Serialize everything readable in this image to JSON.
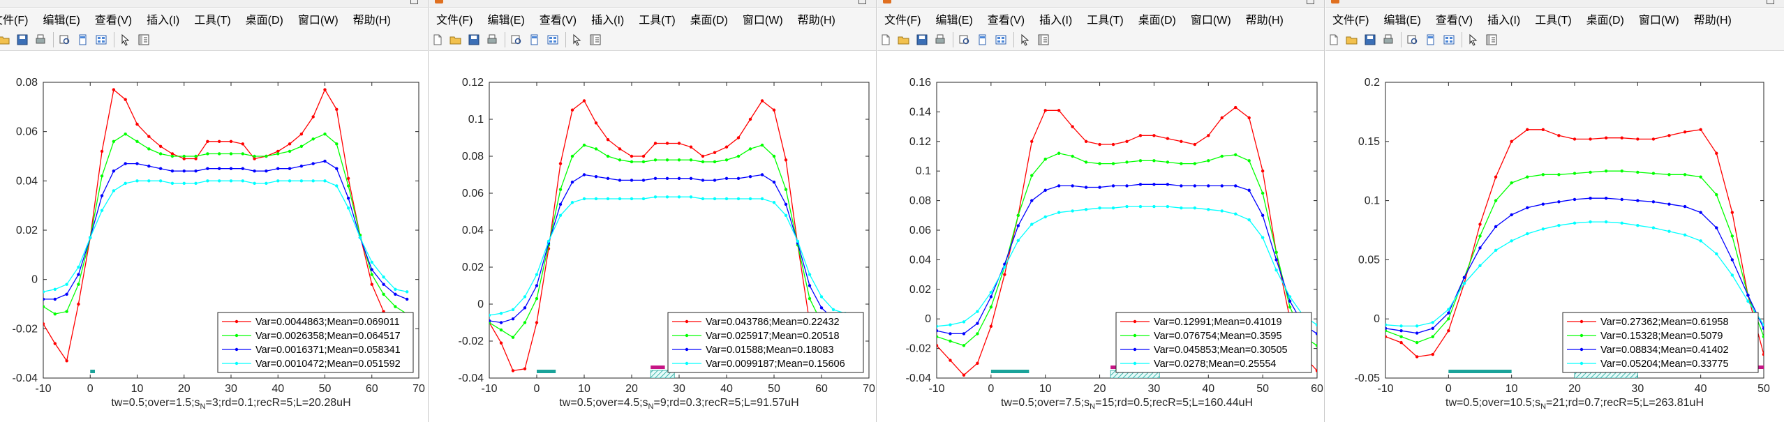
{
  "menu": [
    "文件(F)",
    "编辑(E)",
    "查看(V)",
    "插入(I)",
    "工具(T)",
    "桌面(D)",
    "窗口(W)",
    "帮助(H)"
  ],
  "toolbar_icons": [
    "new-file-icon",
    "open-folder-icon",
    "save-icon",
    "print-icon",
    "print-preview-icon",
    "dock-figure-icon",
    "property-editor-icon",
    "pointer-icon",
    "plot-browser-icon"
  ],
  "colors": {
    "series": [
      "#ff0000",
      "#00ff00",
      "#0000ff",
      "#00ffff"
    ],
    "marker_teal": "#1aa39a",
    "marker_magenta": "#c71585",
    "axis": "#262626",
    "grid": "#e3e3e3"
  },
  "chart_data": [
    {
      "type": "line",
      "x": [
        -10,
        -7.5,
        -5,
        -2.5,
        0,
        2.5,
        5,
        7.5,
        10,
        12.5,
        15,
        17.5,
        20,
        22.5,
        25,
        27.5,
        30,
        32.5,
        35,
        37.5,
        40,
        42.5,
        45,
        47.5,
        50,
        52.5,
        55,
        57.5,
        60,
        62.5,
        65,
        67.5
      ],
      "series": [
        {
          "name": "Var=0.0044863;Mean=0.069011",
          "values": [
            -0.018,
            -0.026,
            -0.033,
            -0.01,
            0.017,
            0.052,
            0.077,
            0.073,
            0.063,
            0.058,
            0.054,
            0.051,
            0.049,
            0.049,
            0.056,
            0.056,
            0.056,
            0.055,
            0.049,
            0.05,
            0.052,
            0.055,
            0.059,
            0.066,
            0.077,
            0.069,
            0.041,
            0.018,
            -0.002,
            -0.013,
            -0.024,
            -0.028
          ]
        },
        {
          "name": "Var=0.0026358;Mean=0.064517",
          "values": [
            -0.011,
            -0.014,
            -0.013,
            -0.002,
            0.017,
            0.042,
            0.056,
            0.059,
            0.056,
            0.053,
            0.051,
            0.05,
            0.05,
            0.05,
            0.051,
            0.051,
            0.051,
            0.051,
            0.05,
            0.05,
            0.051,
            0.052,
            0.054,
            0.057,
            0.059,
            0.055,
            0.038,
            0.018,
            0.002,
            -0.006,
            -0.011,
            -0.014
          ]
        },
        {
          "name": "Var=0.0016371;Mean=0.058341",
          "values": [
            -0.008,
            -0.008,
            -0.006,
            0.002,
            0.017,
            0.034,
            0.044,
            0.047,
            0.047,
            0.046,
            0.045,
            0.044,
            0.044,
            0.044,
            0.045,
            0.045,
            0.045,
            0.045,
            0.044,
            0.044,
            0.045,
            0.045,
            0.046,
            0.047,
            0.048,
            0.045,
            0.033,
            0.017,
            0.004,
            -0.002,
            -0.006,
            -0.008
          ]
        },
        {
          "name": "Var=0.0010472;Mean=0.051592",
          "values": [
            -0.005,
            -0.004,
            -0.002,
            0.005,
            0.017,
            0.028,
            0.036,
            0.039,
            0.04,
            0.04,
            0.04,
            0.039,
            0.039,
            0.039,
            0.04,
            0.04,
            0.04,
            0.04,
            0.039,
            0.039,
            0.04,
            0.04,
            0.04,
            0.04,
            0.04,
            0.038,
            0.029,
            0.017,
            0.007,
            0.001,
            -0.004,
            -0.005
          ]
        }
      ],
      "xlim": [
        -10,
        70
      ],
      "ylim": [
        -0.04,
        0.08
      ],
      "xticks": [
        -10,
        0,
        10,
        20,
        30,
        40,
        50,
        60,
        70
      ],
      "yticks": [
        -0.04,
        -0.02,
        0,
        0.02,
        0.04,
        0.06,
        0.08
      ],
      "ytick_labels": [
        "-0.04",
        "-0.02",
        "0",
        "0.02",
        "0.04",
        "0.06",
        "0.08"
      ],
      "xlabel_parts": [
        "tw=0.5;over=1.5;s",
        "N",
        "=3;rd=0.1;recR=5;L=20.28uH"
      ],
      "bottom_markers": [
        {
          "x0": 0,
          "x1": 1,
          "color": "teal"
        }
      ],
      "grid": false,
      "legend": "bottom-right"
    },
    {
      "type": "line",
      "x": [
        -10,
        -7.5,
        -5,
        -2.5,
        0,
        2.5,
        5,
        7.5,
        10,
        12.5,
        15,
        17.5,
        20,
        22.5,
        25,
        27.5,
        30,
        32.5,
        35,
        37.5,
        40,
        42.5,
        45,
        47.5,
        50,
        52.5,
        55,
        57.5,
        60,
        62.5,
        65,
        67.5
      ],
      "series": [
        {
          "name": "Var=0.043786;Mean=0.22432",
          "values": [
            -0.01,
            -0.021,
            -0.036,
            -0.035,
            -0.01,
            0.03,
            0.076,
            0.105,
            0.11,
            0.098,
            0.089,
            0.084,
            0.08,
            0.08,
            0.087,
            0.087,
            0.087,
            0.085,
            0.08,
            0.082,
            0.085,
            0.09,
            0.1,
            0.11,
            0.105,
            0.078,
            0.032,
            -0.01,
            -0.035,
            -0.036,
            -0.025,
            -0.018
          ]
        },
        {
          "name": "Var=0.025917;Mean=0.20518",
          "values": [
            -0.01,
            -0.014,
            -0.018,
            -0.01,
            0.003,
            0.032,
            0.062,
            0.08,
            0.086,
            0.084,
            0.08,
            0.078,
            0.077,
            0.077,
            0.078,
            0.078,
            0.078,
            0.078,
            0.077,
            0.077,
            0.078,
            0.08,
            0.084,
            0.086,
            0.08,
            0.062,
            0.032,
            0.003,
            -0.01,
            -0.018,
            -0.014,
            -0.01
          ]
        },
        {
          "name": "Var=0.01588;Mean=0.18083",
          "values": [
            -0.009,
            -0.01,
            -0.008,
            -0.002,
            0.01,
            0.033,
            0.054,
            0.066,
            0.07,
            0.069,
            0.068,
            0.067,
            0.067,
            0.067,
            0.068,
            0.068,
            0.068,
            0.068,
            0.067,
            0.067,
            0.068,
            0.068,
            0.069,
            0.07,
            0.066,
            0.054,
            0.033,
            0.01,
            -0.002,
            -0.008,
            -0.01,
            -0.009
          ]
        },
        {
          "name": "Var=0.0099187;Mean=0.15606",
          "values": [
            -0.006,
            -0.005,
            -0.003,
            0.004,
            0.016,
            0.034,
            0.048,
            0.055,
            0.057,
            0.057,
            0.057,
            0.057,
            0.057,
            0.057,
            0.058,
            0.058,
            0.058,
            0.058,
            0.057,
            0.057,
            0.057,
            0.057,
            0.057,
            0.057,
            0.055,
            0.048,
            0.034,
            0.016,
            0.004,
            -0.003,
            -0.005,
            -0.006
          ]
        }
      ],
      "xlim": [
        -10,
        70
      ],
      "ylim": [
        -0.04,
        0.12
      ],
      "xticks": [
        -10,
        0,
        10,
        20,
        30,
        40,
        50,
        60,
        70
      ],
      "yticks": [
        -0.04,
        -0.02,
        0,
        0.02,
        0.04,
        0.06,
        0.08,
        0.1,
        0.12
      ],
      "ytick_labels": [
        "-0.04",
        "-0.02",
        "0",
        "0.02",
        "0.04",
        "0.06",
        "0.08",
        "0.1",
        "0.12"
      ],
      "xlabel_parts": [
        "tw=0.5;over=4.5;s",
        "N",
        "=9;rd=0.3;recR=5;L=91.57uH"
      ],
      "bottom_markers": [
        {
          "x0": 0,
          "x1": 4,
          "color": "teal"
        },
        {
          "x0": 24,
          "x1": 27,
          "color": "magenta"
        },
        {
          "x0": 24,
          "x1": 29,
          "color": "teal-hatch"
        }
      ],
      "grid": false,
      "legend": "bottom-right"
    },
    {
      "type": "line",
      "x": [
        -10,
        -7.5,
        -5,
        -2.5,
        0,
        2.5,
        5,
        7.5,
        10,
        12.5,
        15,
        17.5,
        20,
        22.5,
        25,
        27.5,
        30,
        32.5,
        35,
        37.5,
        40,
        42.5,
        45,
        47.5,
        50,
        52.5,
        55,
        57.5,
        60
      ],
      "series": [
        {
          "name": "Var=0.12991;Mean=0.41019",
          "values": [
            -0.018,
            -0.028,
            -0.038,
            -0.03,
            -0.005,
            0.03,
            0.07,
            0.12,
            0.141,
            0.141,
            0.13,
            0.12,
            0.118,
            0.118,
            0.12,
            0.124,
            0.124,
            0.122,
            0.12,
            0.118,
            0.124,
            0.136,
            0.143,
            0.136,
            0.1,
            0.045,
            0.0,
            -0.025,
            -0.035
          ]
        },
        {
          "name": "Var=0.076754;Mean=0.3595",
          "values": [
            -0.012,
            -0.015,
            -0.018,
            -0.01,
            0.008,
            0.035,
            0.07,
            0.097,
            0.108,
            0.112,
            0.11,
            0.106,
            0.105,
            0.105,
            0.106,
            0.107,
            0.107,
            0.106,
            0.105,
            0.105,
            0.107,
            0.11,
            0.111,
            0.107,
            0.085,
            0.045,
            0.008,
            -0.012,
            -0.018
          ]
        },
        {
          "name": "Var=0.045853;Mean=0.30505",
          "values": [
            -0.008,
            -0.01,
            -0.01,
            -0.003,
            0.015,
            0.037,
            0.063,
            0.08,
            0.087,
            0.09,
            0.09,
            0.089,
            0.089,
            0.09,
            0.09,
            0.091,
            0.091,
            0.091,
            0.09,
            0.09,
            0.09,
            0.09,
            0.09,
            0.087,
            0.07,
            0.04,
            0.012,
            -0.004,
            -0.01
          ]
        },
        {
          "name": "Var=0.0278;Mean=0.25554",
          "values": [
            -0.005,
            -0.004,
            -0.002,
            0.005,
            0.018,
            0.035,
            0.053,
            0.064,
            0.069,
            0.072,
            0.073,
            0.074,
            0.075,
            0.075,
            0.076,
            0.076,
            0.076,
            0.076,
            0.075,
            0.075,
            0.074,
            0.073,
            0.071,
            0.067,
            0.055,
            0.033,
            0.015,
            0.002,
            -0.004
          ]
        }
      ],
      "xlim": [
        -10,
        60
      ],
      "ylim": [
        -0.04,
        0.16
      ],
      "xticks": [
        -10,
        0,
        10,
        20,
        30,
        40,
        50,
        60
      ],
      "yticks": [
        -0.04,
        -0.02,
        0,
        0.02,
        0.04,
        0.06,
        0.08,
        0.1,
        0.12,
        0.14,
        0.16
      ],
      "ytick_labels": [
        "-0.04",
        "-0.02",
        "0",
        "0.02",
        "0.04",
        "0.06",
        "0.08",
        "0.1",
        "0.12",
        "0.14",
        "0.16"
      ],
      "xlabel_parts": [
        "tw=0.5;over=7.5;s",
        "N",
        "=15;rd=0.5;recR=5;L=160.44uH"
      ],
      "bottom_markers": [
        {
          "x0": 0,
          "x1": 7,
          "color": "teal"
        },
        {
          "x0": 22,
          "x1": 26,
          "color": "magenta"
        },
        {
          "x0": 22,
          "x1": 31,
          "color": "teal-hatch"
        }
      ],
      "grid": false,
      "legend": "bottom-right"
    },
    {
      "type": "line",
      "x": [
        -10,
        -7.5,
        -5,
        -2.5,
        0,
        2.5,
        5,
        7.5,
        10,
        12.5,
        15,
        17.5,
        20,
        22.5,
        25,
        27.5,
        30,
        32.5,
        35,
        37.5,
        40,
        42.5,
        45,
        47.5,
        50
      ],
      "series": [
        {
          "name": "Var=0.27362;Mean=0.61958",
          "values": [
            -0.015,
            -0.02,
            -0.032,
            -0.03,
            -0.01,
            0.03,
            0.08,
            0.12,
            0.15,
            0.16,
            0.16,
            0.155,
            0.152,
            0.152,
            0.153,
            0.153,
            0.152,
            0.152,
            0.155,
            0.158,
            0.16,
            0.14,
            0.09,
            0.02,
            -0.03
          ]
        },
        {
          "name": "Var=0.15328;Mean=0.5079",
          "values": [
            -0.01,
            -0.015,
            -0.02,
            -0.015,
            0.0,
            0.035,
            0.07,
            0.1,
            0.115,
            0.12,
            0.122,
            0.122,
            0.123,
            0.124,
            0.125,
            0.125,
            0.124,
            0.123,
            0.122,
            0.122,
            0.12,
            0.105,
            0.07,
            0.02,
            -0.015
          ]
        },
        {
          "name": "Var=0.08834;Mean=0.41402",
          "values": [
            -0.008,
            -0.01,
            -0.012,
            -0.008,
            0.005,
            0.035,
            0.06,
            0.078,
            0.088,
            0.094,
            0.097,
            0.099,
            0.101,
            0.102,
            0.102,
            0.101,
            0.1,
            0.099,
            0.097,
            0.095,
            0.09,
            0.077,
            0.05,
            0.02,
            -0.008
          ]
        },
        {
          "name": "Var=0.05204;Mean=0.33775",
          "values": [
            -0.005,
            -0.006,
            -0.006,
            -0.003,
            0.008,
            0.03,
            0.045,
            0.058,
            0.066,
            0.072,
            0.076,
            0.079,
            0.081,
            0.082,
            0.082,
            0.081,
            0.079,
            0.077,
            0.074,
            0.071,
            0.066,
            0.055,
            0.037,
            0.015,
            -0.005
          ]
        }
      ],
      "xlim": [
        -10,
        50
      ],
      "ylim": [
        -0.05,
        0.2
      ],
      "xticks": [
        -10,
        0,
        10,
        20,
        30,
        40,
        50
      ],
      "yticks": [
        -0.05,
        0,
        0.05,
        0.1,
        0.15,
        0.2
      ],
      "ytick_labels": [
        "-0.05",
        "0",
        "0.05",
        "0.1",
        "0.15",
        "0.2"
      ],
      "xlabel_parts": [
        "tw=0.5;over=10.5;s",
        "N",
        "=21;rd=0.7;recR=5;L=263.81uH"
      ],
      "bottom_markers": [
        {
          "x0": 0,
          "x1": 10,
          "color": "teal"
        },
        {
          "x0": 19,
          "x1": 21,
          "color": "magenta"
        },
        {
          "x0": 20,
          "x1": 30,
          "color": "teal-hatch"
        },
        {
          "x0": 40,
          "x1": 50,
          "color": "magenta"
        }
      ],
      "grid": false,
      "legend": "bottom-right"
    }
  ]
}
